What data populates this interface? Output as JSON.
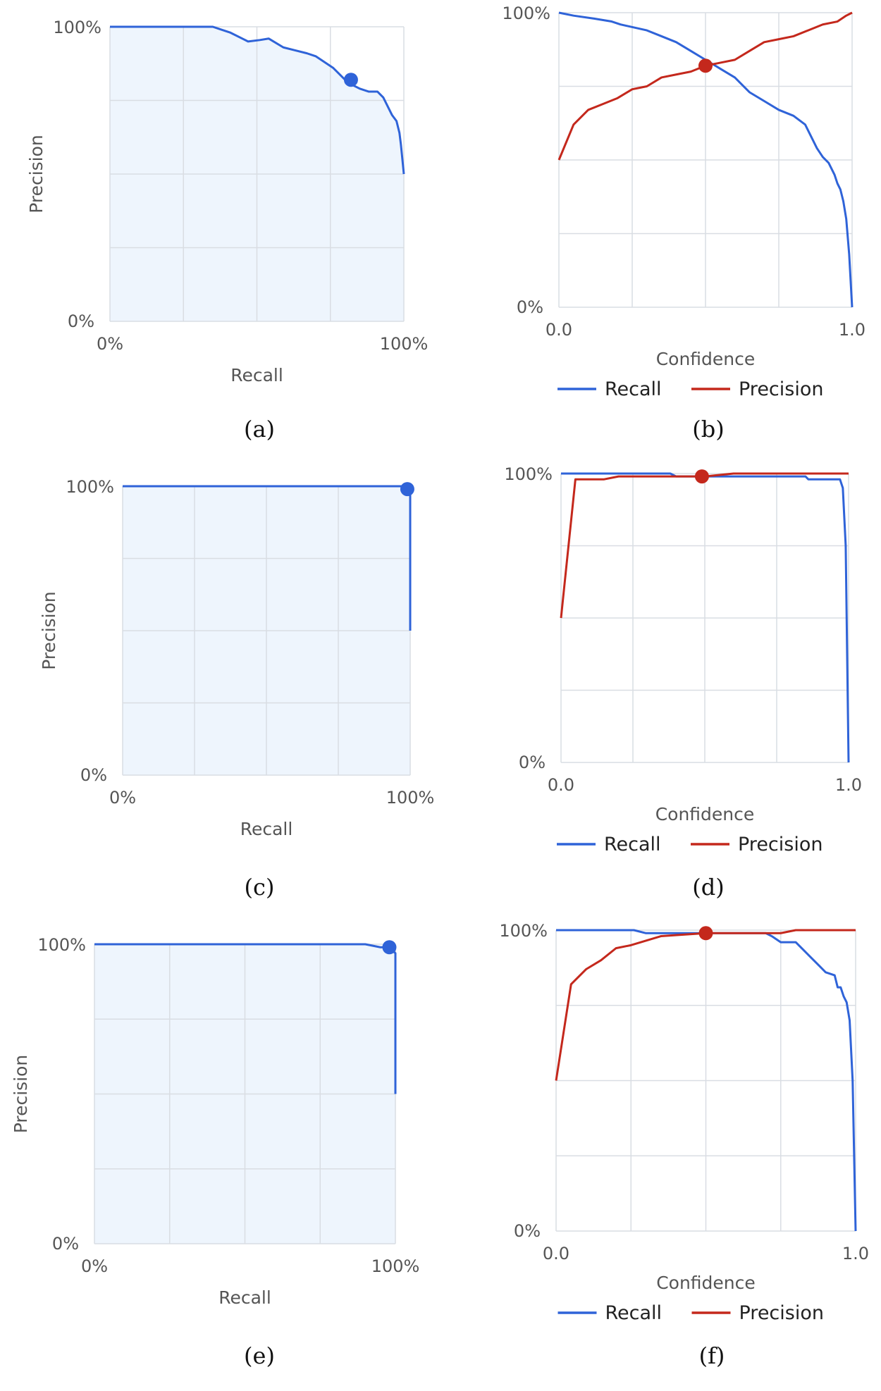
{
  "colors": {
    "recall": "#2f63d8",
    "precision": "#c4281c",
    "pr_fill": "#eef5fd",
    "grid": "#d9dde3"
  },
  "chart_data": [
    {
      "caption": "(a)",
      "type": "area",
      "title": "",
      "xlabel": "Recall",
      "ylabel": "Precision",
      "x_ticks": [
        "0%",
        "100%"
      ],
      "y_ticks": [
        "0%",
        "100%"
      ],
      "xlim": [
        0,
        100
      ],
      "ylim": [
        0,
        100
      ],
      "grid": true,
      "series": [
        {
          "name": "",
          "x": [
            0,
            33,
            35,
            38,
            41,
            45,
            47,
            51,
            54,
            59,
            63,
            67,
            70,
            73,
            76,
            79,
            81,
            85,
            88,
            91,
            93,
            95,
            96,
            97.5,
            98.5,
            99,
            100
          ],
          "y": [
            100,
            100,
            100,
            99,
            98,
            96,
            95,
            95.5,
            96,
            93,
            92,
            91,
            90,
            88,
            86,
            83,
            81,
            79,
            78,
            78,
            76,
            72,
            70,
            68,
            64,
            60,
            50
          ]
        }
      ],
      "marker": {
        "x": 82,
        "y": 82
      }
    },
    {
      "caption": "(b)",
      "type": "line",
      "title": "",
      "xlabel": "Confidence",
      "ylabel": "",
      "x_ticks": [
        "0.0",
        "1.0"
      ],
      "y_ticks": [
        "0%",
        "100%"
      ],
      "xlim": [
        0,
        1
      ],
      "ylim": [
        0,
        100
      ],
      "grid": true,
      "legend": "bottom",
      "series": [
        {
          "name": "Recall",
          "x": [
            0,
            0.05,
            0.12,
            0.18,
            0.21,
            0.3,
            0.35,
            0.4,
            0.45,
            0.5,
            0.55,
            0.6,
            0.65,
            0.7,
            0.75,
            0.8,
            0.84,
            0.86,
            0.88,
            0.9,
            0.92,
            0.93,
            0.94,
            0.95,
            0.96,
            0.97,
            0.98,
            0.99,
            1.0
          ],
          "y": [
            100,
            99,
            98,
            97,
            96,
            94,
            92,
            90,
            87,
            84,
            81,
            78,
            73,
            70,
            67,
            65,
            62,
            58,
            54,
            51,
            49,
            47,
            45,
            42,
            40,
            36,
            30,
            18,
            0
          ]
        },
        {
          "name": "Precision",
          "x": [
            0,
            0.05,
            0.1,
            0.15,
            0.2,
            0.25,
            0.3,
            0.35,
            0.4,
            0.45,
            0.5,
            0.55,
            0.6,
            0.65,
            0.7,
            0.75,
            0.8,
            0.85,
            0.9,
            0.95,
            0.98,
            1.0
          ],
          "y": [
            50,
            62,
            67,
            69,
            71,
            74,
            75,
            78,
            79,
            80,
            82,
            83,
            84,
            87,
            90,
            91,
            92,
            94,
            96,
            97,
            99,
            100
          ]
        }
      ],
      "marker": {
        "x": 0.5,
        "y": 82
      }
    },
    {
      "caption": "(c)",
      "type": "area",
      "title": "",
      "xlabel": "Recall",
      "ylabel": "Precision",
      "x_ticks": [
        "0%",
        "100%"
      ],
      "y_ticks": [
        "0%",
        "100%"
      ],
      "xlim": [
        0,
        100
      ],
      "ylim": [
        0,
        100
      ],
      "grid": true,
      "series": [
        {
          "name": "",
          "x": [
            0,
            99,
            100,
            100
          ],
          "y": [
            100,
            100,
            99,
            50
          ]
        }
      ],
      "marker": {
        "x": 99,
        "y": 99
      }
    },
    {
      "caption": "(d)",
      "type": "line",
      "title": "",
      "xlabel": "Confidence",
      "ylabel": "",
      "x_ticks": [
        "0.0",
        "1.0"
      ],
      "y_ticks": [
        "0%",
        "100%"
      ],
      "xlim": [
        0,
        1
      ],
      "ylim": [
        0,
        100
      ],
      "grid": true,
      "legend": "bottom",
      "series": [
        {
          "name": "Recall",
          "x": [
            0,
            0.38,
            0.4,
            0.85,
            0.86,
            0.97,
            0.98,
            0.99,
            1.0
          ],
          "y": [
            100,
            100,
            99,
            99,
            98,
            98,
            95,
            75,
            0
          ]
        },
        {
          "name": "Precision",
          "x": [
            0,
            0.05,
            0.15,
            0.2,
            0.25,
            0.5,
            0.6,
            1.0
          ],
          "y": [
            50,
            98,
            98,
            99,
            99,
            99,
            100,
            100
          ]
        }
      ],
      "marker": {
        "x": 0.49,
        "y": 99
      }
    },
    {
      "caption": "(e)",
      "type": "area",
      "title": "",
      "xlabel": "Recall",
      "ylabel": "Precision",
      "x_ticks": [
        "0%",
        "100%"
      ],
      "y_ticks": [
        "0%",
        "100%"
      ],
      "xlim": [
        0,
        100
      ],
      "ylim": [
        0,
        100
      ],
      "grid": true,
      "series": [
        {
          "name": "",
          "x": [
            0,
            90,
            95,
            98,
            100,
            100
          ],
          "y": [
            100,
            100,
            99,
            99,
            97,
            50
          ]
        }
      ],
      "marker": {
        "x": 98,
        "y": 99
      }
    },
    {
      "caption": "(f)",
      "type": "line",
      "title": "",
      "xlabel": "Confidence",
      "ylabel": "",
      "x_ticks": [
        "0.0",
        "1.0"
      ],
      "y_ticks": [
        "0%",
        "100%"
      ],
      "xlim": [
        0,
        1
      ],
      "ylim": [
        0,
        100
      ],
      "grid": true,
      "legend": "bottom",
      "series": [
        {
          "name": "Recall",
          "x": [
            0,
            0.26,
            0.3,
            0.5,
            0.7,
            0.72,
            0.75,
            0.8,
            0.85,
            0.88,
            0.9,
            0.93,
            0.94,
            0.95,
            0.96,
            0.97,
            0.98,
            0.99,
            1.0
          ],
          "y": [
            100,
            100,
            99,
            99,
            99,
            98,
            96,
            96,
            91,
            88,
            86,
            85,
            81,
            81,
            78,
            76,
            70,
            50,
            0
          ]
        },
        {
          "name": "Precision",
          "x": [
            0,
            0.05,
            0.1,
            0.15,
            0.2,
            0.25,
            0.35,
            0.5,
            0.65,
            0.75,
            0.8,
            1.0
          ],
          "y": [
            50,
            82,
            87,
            90,
            94,
            95,
            98,
            99,
            99,
            99,
            100,
            100
          ]
        }
      ],
      "marker": {
        "x": 0.5,
        "y": 99
      }
    }
  ]
}
